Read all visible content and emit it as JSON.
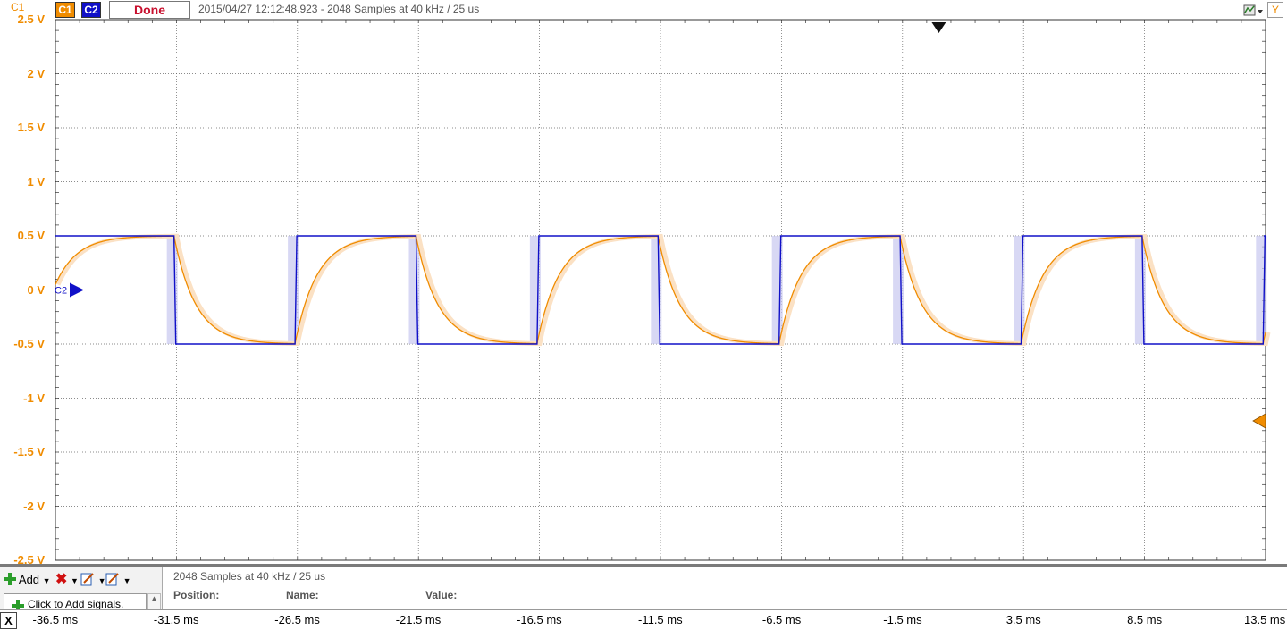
{
  "toolbar": {
    "channel_axis_label": "C1",
    "ch1_button": "C1",
    "ch2_button": "C2",
    "done_button": "Done",
    "acquisition_info": "2015/04/27  12:12:48.923 - 2048 Samples at 40 kHz / 25 us",
    "y_button": "Y"
  },
  "colors": {
    "ch1": "#f08c00",
    "ch2": "#1010c8",
    "done_text": "#c8102e"
  },
  "icons": {
    "add": "plus-icon",
    "remove": "red-x-icon",
    "edit": "edit-icon",
    "edit2": "edit-icon",
    "settings": "scope-settings-icon",
    "trigger": "triangle-down-icon",
    "ch2_marker": "triangle-right-icon",
    "trigger_level": "triangle-left-icon"
  },
  "chart_data": {
    "type": "line",
    "ylim": [
      -2.5,
      2.5
    ],
    "y_ticks": [
      "2.5 V",
      "2 V",
      "1.5 V",
      "1 V",
      "0.5 V",
      "0 V",
      "-0.5 V",
      "-1 V",
      "-1.5 V",
      "-2 V",
      "-2.5 V"
    ],
    "xlim_ms": [
      -36.5,
      13.5
    ],
    "x_ticks": [
      "-36.5 ms",
      "-31.5 ms",
      "-26.5 ms",
      "-21.5 ms",
      "-16.5 ms",
      "-11.5 ms",
      "-6.5 ms",
      "-1.5 ms",
      "3.5 ms",
      "8.5 ms",
      "13.5 ms"
    ],
    "grid": true,
    "ch2_marker_label": "C2",
    "series": [
      {
        "name": "C2",
        "shape": "square wave",
        "high_v": 0.5,
        "low_v": -0.5,
        "period_ms": 10,
        "rising_edges_ms": [
          -26.6,
          -16.6,
          -6.6,
          3.4,
          13.4
        ],
        "falling_edges_ms": [
          -31.6,
          -21.6,
          -11.6,
          -1.6,
          8.4
        ]
      },
      {
        "name": "C1",
        "shape": "RC exponential response",
        "high_v": 0.5,
        "low_v": -0.5,
        "time_constant_ms": 0.9
      }
    ]
  },
  "bottom_panel": {
    "add_label": "Add",
    "click_to_add": "Click to Add signals.",
    "info_title": "2048 Samples at 40 kHz / 25 us",
    "col_position": "Position:",
    "col_name": "Name:",
    "col_value": "Value:",
    "x_button": "X"
  }
}
